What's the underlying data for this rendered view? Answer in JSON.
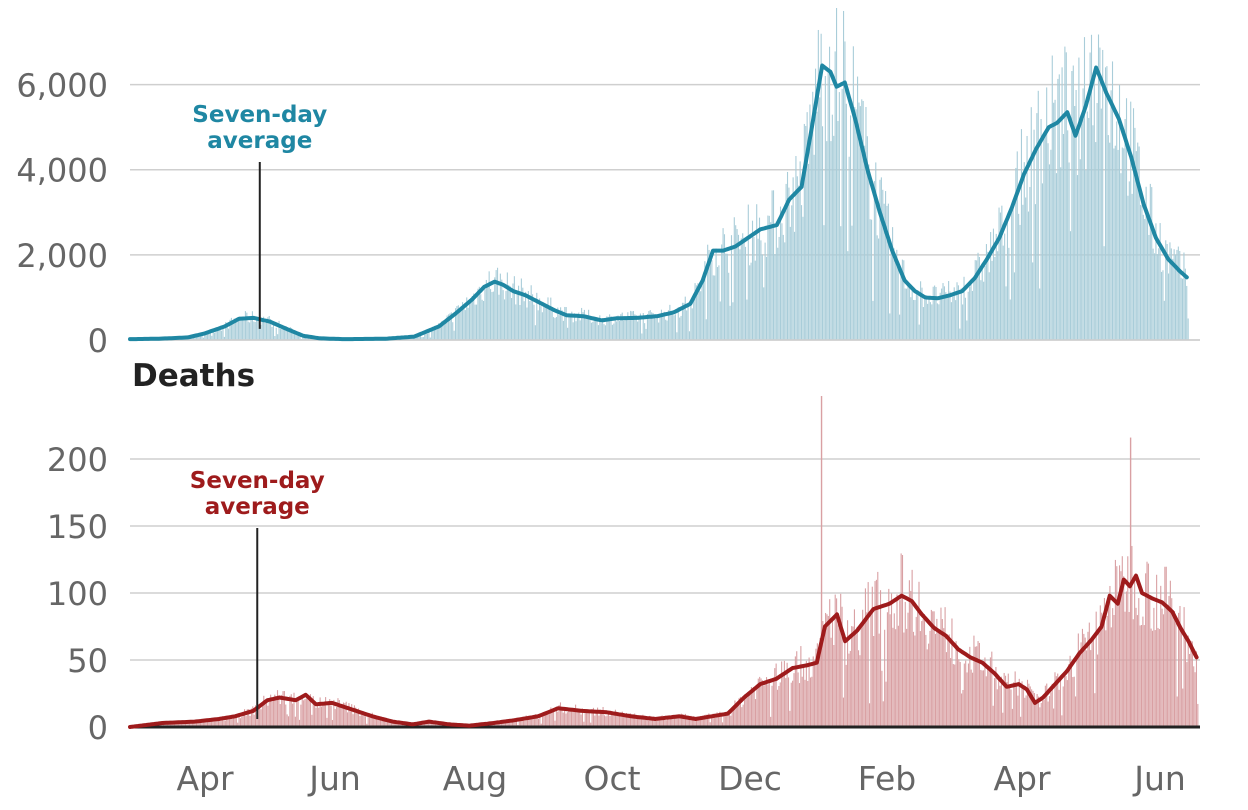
{
  "chart_data": [
    {
      "type": "bar",
      "title": "",
      "ylabel": "",
      "ylim": [
        0,
        7800
      ],
      "yticks": [
        0,
        2000,
        4000,
        6000
      ],
      "ytick_labels": [
        "0",
        "2,000",
        "4,000",
        "6,000"
      ],
      "grid": true,
      "bar_color": "#a9cdd9",
      "line_color": "#1f87a3",
      "annotation": {
        "line1": "Seven-day",
        "line2": "average",
        "month": 3.15,
        "value": 260
      },
      "average_keypoints": [
        [
          0,
          20
        ],
        [
          0.7,
          30
        ],
        [
          1.4,
          60
        ],
        [
          1.8,
          150
        ],
        [
          2.3,
          320
        ],
        [
          2.65,
          500
        ],
        [
          3.0,
          520
        ],
        [
          3.4,
          430
        ],
        [
          3.8,
          260
        ],
        [
          4.2,
          100
        ],
        [
          4.6,
          40
        ],
        [
          5.2,
          20
        ],
        [
          6.2,
          30
        ],
        [
          6.9,
          80
        ],
        [
          7.5,
          320
        ],
        [
          7.9,
          620
        ],
        [
          8.3,
          950
        ],
        [
          8.6,
          1250
        ],
        [
          8.85,
          1370
        ],
        [
          9.05,
          1300
        ],
        [
          9.3,
          1150
        ],
        [
          9.6,
          1050
        ],
        [
          9.9,
          900
        ],
        [
          10.3,
          700
        ],
        [
          10.6,
          580
        ],
        [
          11.0,
          560
        ],
        [
          11.45,
          460
        ],
        [
          11.8,
          510
        ],
        [
          12.3,
          520
        ],
        [
          12.8,
          560
        ],
        [
          13.2,
          650
        ],
        [
          13.6,
          850
        ],
        [
          13.9,
          1400
        ],
        [
          14.15,
          2100
        ],
        [
          14.4,
          2100
        ],
        [
          14.7,
          2200
        ],
        [
          15.0,
          2400
        ],
        [
          15.3,
          2600
        ],
        [
          15.7,
          2700
        ],
        [
          16.0,
          3300
        ],
        [
          16.3,
          3600
        ],
        [
          16.55,
          5000
        ],
        [
          16.8,
          6450
        ],
        [
          17.0,
          6300
        ],
        [
          17.15,
          5950
        ],
        [
          17.35,
          6050
        ],
        [
          17.6,
          5200
        ],
        [
          17.9,
          4000
        ],
        [
          18.2,
          3000
        ],
        [
          18.5,
          2100
        ],
        [
          18.8,
          1400
        ],
        [
          19.05,
          1150
        ],
        [
          19.3,
          1000
        ],
        [
          19.6,
          980
        ],
        [
          19.9,
          1050
        ],
        [
          20.2,
          1150
        ],
        [
          20.5,
          1450
        ],
        [
          20.8,
          1900
        ],
        [
          21.1,
          2400
        ],
        [
          21.4,
          3100
        ],
        [
          21.7,
          3900
        ],
        [
          22.0,
          4500
        ],
        [
          22.3,
          5000
        ],
        [
          22.5,
          5100
        ],
        [
          22.75,
          5350
        ],
        [
          22.95,
          4800
        ],
        [
          23.2,
          5500
        ],
        [
          23.45,
          6400
        ],
        [
          23.7,
          5800
        ],
        [
          24.0,
          5200
        ],
        [
          24.3,
          4300
        ],
        [
          24.6,
          3200
        ],
        [
          24.9,
          2400
        ],
        [
          25.2,
          1900
        ],
        [
          25.5,
          1600
        ],
        [
          25.7,
          1430
        ]
      ]
    },
    {
      "type": "bar",
      "title": "Deaths",
      "ylabel": "",
      "ylim": [
        0,
        250
      ],
      "yticks": [
        0,
        50,
        100,
        150,
        200
      ],
      "ytick_labels": [
        "0",
        "50",
        "100",
        "150",
        "200"
      ],
      "grid": true,
      "bar_color": "#d9a0a3",
      "line_color": "#9e1b1c",
      "annotation": {
        "line1": "Seven-day",
        "line2": "average",
        "month": 3.15,
        "value": 6
      },
      "average_keypoints": [
        [
          0,
          0
        ],
        [
          0.8,
          3
        ],
        [
          1.6,
          4
        ],
        [
          2.2,
          6
        ],
        [
          2.6,
          8
        ],
        [
          3.05,
          12
        ],
        [
          3.4,
          20
        ],
        [
          3.7,
          22
        ],
        [
          4.1,
          20
        ],
        [
          4.35,
          24
        ],
        [
          4.6,
          17
        ],
        [
          5.0,
          18
        ],
        [
          5.5,
          13
        ],
        [
          6.0,
          8
        ],
        [
          6.5,
          4
        ],
        [
          7.0,
          2
        ],
        [
          7.4,
          4
        ],
        [
          7.9,
          2
        ],
        [
          8.4,
          1
        ],
        [
          9.0,
          3
        ],
        [
          9.5,
          5
        ],
        [
          10.1,
          8
        ],
        [
          10.6,
          14
        ],
        [
          11.2,
          12
        ],
        [
          11.8,
          11
        ],
        [
          12.4,
          8
        ],
        [
          13.0,
          6
        ],
        [
          13.6,
          8
        ],
        [
          14.0,
          6
        ],
        [
          14.4,
          8
        ],
        [
          14.8,
          10
        ],
        [
          15.2,
          22
        ],
        [
          15.6,
          32
        ],
        [
          16.0,
          36
        ],
        [
          16.4,
          44
        ],
        [
          16.75,
          46
        ],
        [
          17.0,
          48
        ],
        [
          17.2,
          75
        ],
        [
          17.5,
          84
        ],
        [
          17.7,
          64
        ],
        [
          18.0,
          72
        ],
        [
          18.4,
          88
        ],
        [
          18.8,
          92
        ],
        [
          19.1,
          98
        ],
        [
          19.35,
          94
        ],
        [
          19.6,
          84
        ],
        [
          19.9,
          74
        ],
        [
          20.2,
          68
        ],
        [
          20.5,
          58
        ],
        [
          20.8,
          52
        ],
        [
          21.1,
          48
        ],
        [
          21.4,
          40
        ],
        [
          21.7,
          30
        ],
        [
          22.0,
          32
        ],
        [
          22.2,
          28
        ],
        [
          22.4,
          18
        ],
        [
          22.6,
          22
        ],
        [
          22.9,
          32
        ],
        [
          23.2,
          42
        ],
        [
          23.5,
          55
        ],
        [
          23.8,
          65
        ],
        [
          24.05,
          75
        ],
        [
          24.25,
          98
        ],
        [
          24.45,
          92
        ],
        [
          24.6,
          110
        ],
        [
          24.75,
          105
        ],
        [
          24.9,
          113
        ],
        [
          25.05,
          100
        ],
        [
          25.3,
          96
        ],
        [
          25.55,
          93
        ],
        [
          25.8,
          86
        ],
        [
          26.0,
          74
        ],
        [
          26.2,
          64
        ],
        [
          26.45,
          49
        ]
      ],
      "spikes": [
        [
          17.1,
          247
        ],
        [
          24.75,
          216
        ]
      ]
    }
  ],
  "x_ticks": [
    {
      "label": "Apr",
      "month": 3
    },
    {
      "label": "Jun",
      "month": 5
    },
    {
      "label": "Aug",
      "month": 7
    },
    {
      "label": "Oct",
      "month": 9
    },
    {
      "label": "Dec",
      "month": 11
    },
    {
      "label": "Feb",
      "month": 13
    },
    {
      "label": "Apr",
      "month": 15
    },
    {
      "label": "Jun",
      "month": 17
    }
  ]
}
